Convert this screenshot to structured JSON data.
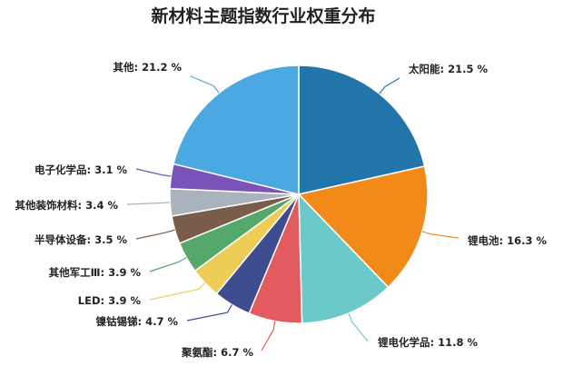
{
  "chart_data": {
    "type": "pie",
    "title": "新材料主题指数行业权重分布",
    "slices": [
      {
        "name": "太阳能",
        "value": 21.5,
        "label": "太阳能: 21.5 %",
        "color": "#2275a8"
      },
      {
        "name": "锂电池",
        "value": 16.3,
        "label": "锂电池: 16.3 %",
        "color": "#f28a1a"
      },
      {
        "name": "锂电化学品",
        "value": 11.8,
        "label": "锂电化学品: 11.8 %",
        "color": "#6cc9c9"
      },
      {
        "name": "聚氨酯",
        "value": 6.7,
        "label": "聚氨酯: 6.7 %",
        "color": "#e25b5e"
      },
      {
        "name": "镍钴锡锑",
        "value": 4.7,
        "label": "镍钴锡锑: 4.7 %",
        "color": "#3d4d8f"
      },
      {
        "name": "LED",
        "value": 3.9,
        "label": "LED: 3.9 %",
        "color": "#edcd55"
      },
      {
        "name": "其他军工Ⅲ",
        "value": 3.9,
        "label": "其他军工Ⅲ: 3.9 %",
        "color": "#54a86b"
      },
      {
        "name": "半导体设备",
        "value": 3.5,
        "label": "半导体设备: 3.5 %",
        "color": "#7a5c4a"
      },
      {
        "name": "其他装饰材料",
        "value": 3.4,
        "label": "其他装饰材料: 3.4 %",
        "color": "#a9b3bd"
      },
      {
        "name": "电子化学品",
        "value": 3.1,
        "label": "电子化学品: 3.1 %",
        "color": "#7a53b8"
      },
      {
        "name": "其他",
        "value": 21.2,
        "label": "其他: 21.2 %",
        "color": "#4ba8e0"
      }
    ]
  }
}
